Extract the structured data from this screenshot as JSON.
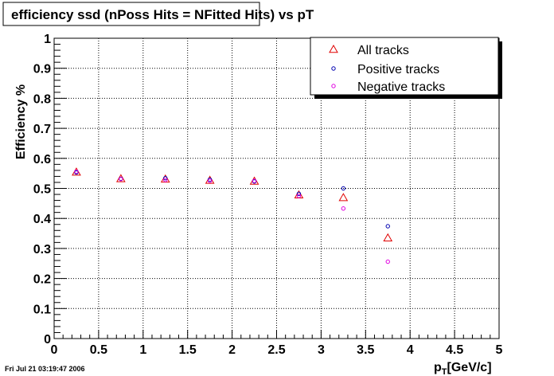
{
  "chart_data": {
    "type": "scatter",
    "title": "efficiency ssd (nPoss Hits = NFitted Hits) vs pT",
    "xlabel_main": "p",
    "xlabel_sub": "T",
    "xlabel_units": "[GeV/c]",
    "ylabel": "Efficiency %",
    "xlim": [
      0,
      5
    ],
    "ylim": [
      0,
      1
    ],
    "xticks": [
      "0",
      "0.5",
      "1",
      "1.5",
      "2",
      "2.5",
      "3",
      "3.5",
      "4",
      "4.5",
      "5"
    ],
    "yticks": [
      "0",
      "0.1",
      "0.2",
      "0.3",
      "0.4",
      "0.5",
      "0.6",
      "0.7",
      "0.8",
      "0.9",
      "1"
    ],
    "grid": true,
    "legend_position": "top-right",
    "timestamp": "Fri Jul 21 03:19:47 2006",
    "series": [
      {
        "name": "All tracks",
        "marker": "triangle",
        "color": "#e00000",
        "x": [
          0.25,
          0.75,
          1.25,
          1.75,
          2.25,
          2.75,
          3.25,
          3.75
        ],
        "y": [
          0.554,
          0.532,
          0.531,
          0.527,
          0.524,
          0.478,
          0.469,
          0.335
        ]
      },
      {
        "name": "Positive tracks",
        "marker": "circle",
        "color": "#0000b0",
        "x": [
          0.25,
          0.75,
          1.25,
          1.75,
          2.25,
          2.75,
          3.25,
          3.75
        ],
        "y": [
          0.553,
          0.532,
          0.534,
          0.529,
          0.523,
          0.482,
          0.5,
          0.374
        ]
      },
      {
        "name": "Negative tracks",
        "marker": "circle",
        "color": "#e000e0",
        "x": [
          0.25,
          0.75,
          1.25,
          1.75,
          2.25,
          2.75,
          3.25,
          3.75
        ],
        "y": [
          0.556,
          0.531,
          0.528,
          0.525,
          0.525,
          0.475,
          0.433,
          0.256
        ]
      }
    ]
  }
}
